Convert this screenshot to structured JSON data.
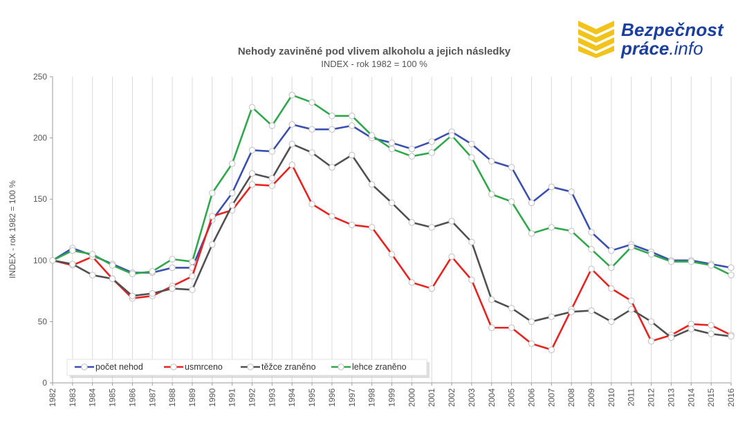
{
  "logo": {
    "name_line1": "Bezpečnost",
    "name_line2_bold": "práce",
    "name_line2_suffix": ".info",
    "brand_color": "#1b3f9e",
    "mark_color": "#f2c318",
    "mark_icon": "chevron-stripes-icon"
  },
  "chart_data": {
    "type": "line",
    "title": "Nehody zaviněné pod vlivem alkoholu a jejich následky",
    "subtitle": "INDEX - rok 1982 = 100 %",
    "xlabel": "",
    "ylabel": "INDEX - rok 1982 = 100 %",
    "ylim": [
      0,
      250
    ],
    "yticks": [
      0,
      50,
      100,
      150,
      200,
      250
    ],
    "grid": "vertical",
    "legend_position": "bottom-left",
    "x": [
      "1982",
      "1983",
      "1984",
      "1985",
      "1986",
      "1987",
      "1988",
      "1989",
      "1990",
      "1991",
      "1992",
      "1993",
      "1994",
      "1995",
      "1996",
      "1997",
      "1998",
      "1999",
      "2000",
      "2001",
      "2002",
      "2003",
      "2004",
      "2005",
      "2006",
      "2007",
      "2008",
      "2009",
      "2010",
      "2011",
      "2012",
      "2013",
      "2014",
      "2015",
      "2016"
    ],
    "series": [
      {
        "name": "počet nehod",
        "color": "#3a4fb0",
        "values": [
          100,
          110,
          104,
          97,
          90,
          90,
          94,
          94,
          133,
          155,
          190,
          189,
          211,
          207,
          207,
          210,
          200,
          196,
          191,
          197,
          205,
          195,
          181,
          176,
          147,
          160,
          156,
          123,
          108,
          113,
          107,
          100,
          100,
          97,
          94
        ]
      },
      {
        "name": "usmrceno",
        "color": "#e8231f",
        "values": [
          100,
          96,
          103,
          85,
          69,
          71,
          79,
          87,
          136,
          141,
          162,
          161,
          178,
          146,
          136,
          129,
          127,
          105,
          82,
          77,
          103,
          84,
          45,
          45,
          32,
          27,
          60,
          93,
          77,
          67,
          34,
          39,
          48,
          47,
          39
        ]
      },
      {
        "name": "těžce zraněno",
        "color": "#505050",
        "values": [
          100,
          97,
          88,
          85,
          71,
          73,
          77,
          76,
          113,
          145,
          171,
          167,
          195,
          188,
          176,
          186,
          162,
          147,
          131,
          127,
          132,
          115,
          68,
          61,
          50,
          54,
          58,
          59,
          50,
          60,
          50,
          37,
          44,
          40,
          38
        ]
      },
      {
        "name": "lehce zraněno",
        "color": "#2ea84a",
        "values": [
          100,
          108,
          105,
          96,
          89,
          91,
          101,
          99,
          155,
          179,
          225,
          210,
          235,
          229,
          218,
          218,
          202,
          191,
          185,
          188,
          202,
          184,
          154,
          148,
          122,
          127,
          124,
          109,
          94,
          111,
          105,
          99,
          99,
          96,
          88
        ]
      }
    ]
  }
}
